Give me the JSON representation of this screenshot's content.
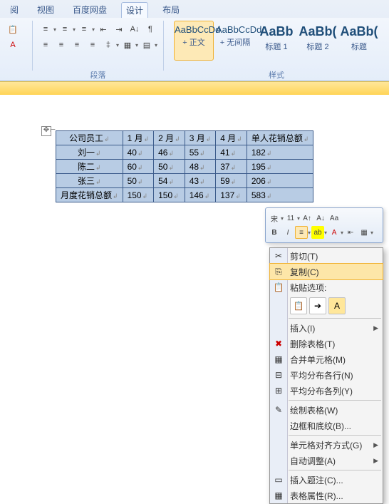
{
  "tabs": {
    "t1": "阅",
    "t2": "视图",
    "t3": "百度网盘",
    "t4": "设计",
    "t5": "布局"
  },
  "group_labels": {
    "para": "段落",
    "styles": "样式"
  },
  "styles": [
    {
      "prev": "AaBbCcDd",
      "name": "+ 正文",
      "sel": true
    },
    {
      "prev": "AaBbCcDd",
      "name": "+ 无间隔"
    },
    {
      "prev": "AaBb",
      "name": "标题 1",
      "big": true
    },
    {
      "prev": "AaBb(",
      "name": "标题 2",
      "big": true
    },
    {
      "prev": "AaBb(",
      "name": "标题",
      "big": true
    }
  ],
  "table": {
    "headers": [
      "公司员工",
      "1 月",
      "2 月",
      "3 月",
      "4 月",
      "单人花销总额"
    ],
    "rows": [
      [
        "刘一",
        "40",
        "46",
        "55",
        "41",
        "182"
      ],
      [
        "陈二",
        "60",
        "50",
        "48",
        "37",
        "195"
      ],
      [
        "张三",
        "50",
        "54",
        "43",
        "59",
        "206"
      ],
      [
        "月度花销总额",
        "150",
        "150",
        "146",
        "137",
        "583"
      ]
    ]
  },
  "ctx": {
    "cut": "剪切(T)",
    "copy": "复制(C)",
    "paste_opt": "粘贴选项:",
    "insert": "插入(I)",
    "del": "删除表格(T)",
    "merge": "合并单元格(M)",
    "dist_row": "平均分布各行(N)",
    "dist_col": "平均分布各列(Y)",
    "draw": "绘制表格(W)",
    "border": "边框和底纹(B)...",
    "align": "单元格对齐方式(G)",
    "autofit": "自动调整(A)",
    "comment": "插入题注(C)...",
    "props": "表格属性(R)..."
  }
}
